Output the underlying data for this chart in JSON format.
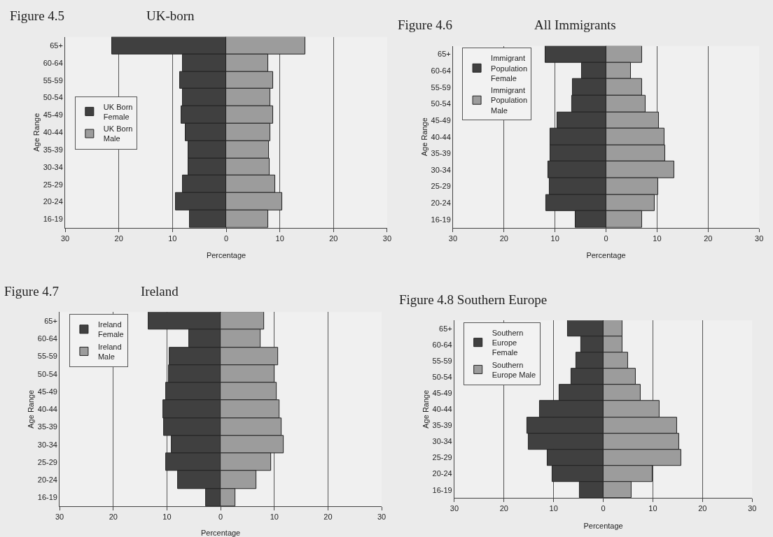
{
  "chart_data": [
    {
      "type": "bar",
      "stacked": true,
      "orientation": "horizontal",
      "title": "Figure 4.5",
      "subtitle": "UK-born",
      "xlabel": "Percentage",
      "ylabel": "Age Range",
      "categories": [
        "65+",
        "60-64",
        "55-59",
        "50-54",
        "45-49",
        "40-44",
        "35-39",
        "30-34",
        "25-29",
        "20-24",
        "16-19"
      ],
      "series": [
        {
          "name": "UK Born Female",
          "color": "#404040",
          "values": [
            -21.3,
            -8.1,
            -8.6,
            -8.1,
            -8.4,
            -7.5,
            -7.1,
            -7.1,
            -8.1,
            -9.4,
            -6.8
          ]
        },
        {
          "name": "UK Born Male",
          "color": "#9c9c9c",
          "values": [
            14.8,
            7.8,
            8.7,
            8.2,
            8.8,
            8.2,
            8.0,
            8.1,
            9.1,
            10.4,
            7.8
          ]
        }
      ],
      "xlim": [
        -30,
        30
      ],
      "xticks": [
        {
          "value": -30,
          "label": "30"
        },
        {
          "value": -20,
          "label": "20"
        },
        {
          "value": -10,
          "label": "10"
        },
        0,
        10,
        20,
        30
      ],
      "grid": "x",
      "legend": "left"
    },
    {
      "type": "bar",
      "stacked": true,
      "orientation": "horizontal",
      "title": "Figure 4.6",
      "subtitle": "All Immigrants",
      "xlabel": "Percentage",
      "ylabel": "Age Range",
      "categories": [
        "65+",
        "60-64",
        "55-59",
        "50-54",
        "45-49",
        "40-44",
        "35-39",
        "30-34",
        "25-29",
        "20-24",
        "16-19"
      ],
      "series": [
        {
          "name": "Immigrant Population Female",
          "color": "#404040",
          "values": [
            -11.9,
            -4.8,
            -6.6,
            -6.7,
            -9.6,
            -10.9,
            -10.9,
            -11.4,
            -11.1,
            -11.8,
            -6.0
          ]
        },
        {
          "name": "Immigrant Population Male",
          "color": "#9c9c9c",
          "values": [
            7.0,
            4.9,
            7.0,
            7.8,
            10.3,
            11.5,
            11.6,
            13.4,
            10.2,
            9.5,
            7.0
          ]
        }
      ],
      "xlim": [
        -30,
        30
      ],
      "xticks": [
        {
          "value": -30,
          "label": "30"
        },
        {
          "value": -20,
          "label": "20"
        },
        {
          "value": -10,
          "label": "10"
        },
        0,
        10,
        20,
        30
      ],
      "grid": "x",
      "legend": "top left"
    },
    {
      "type": "bar",
      "stacked": true,
      "orientation": "horizontal",
      "title": "Figure 4.7",
      "subtitle": "Ireland",
      "xlabel": "Percentage",
      "ylabel": "Age Range",
      "categories": [
        "65+",
        "60-64",
        "55-59",
        "50-54",
        "45-49",
        "40-44",
        "35-39",
        "30-34",
        "25-29",
        "20-24",
        "16-19"
      ],
      "series": [
        {
          "name": "Ireland Female",
          "color": "#404040",
          "values": [
            -13.4,
            -5.9,
            -9.5,
            -9.6,
            -10.2,
            -10.7,
            -10.6,
            -9.1,
            -10.2,
            -8.0,
            -2.8
          ]
        },
        {
          "name": "Ireland Male",
          "color": "#9c9c9c",
          "values": [
            8.1,
            7.4,
            10.7,
            10.0,
            10.5,
            10.9,
            11.4,
            11.8,
            9.4,
            6.6,
            2.8
          ]
        }
      ],
      "xlim": [
        -30,
        30
      ],
      "xticks": [
        {
          "value": -30,
          "label": "30"
        },
        {
          "value": -20,
          "label": "20"
        },
        {
          "value": -10,
          "label": "10"
        },
        0,
        10,
        20,
        30
      ],
      "grid": "x",
      "legend": "top left"
    },
    {
      "type": "bar",
      "stacked": true,
      "orientation": "horizontal",
      "title": "Figure 4.8 Southern Europe",
      "xlabel": "Percentage",
      "ylabel": "Age Range",
      "categories": [
        "65+",
        "60-64",
        "55-59",
        "50-54",
        "45-49",
        "40-44",
        "35-39",
        "30-34",
        "25-29",
        "20-24",
        "16-19"
      ],
      "series": [
        {
          "name": "Southern Europe Female",
          "color": "#404040",
          "values": [
            -7.1,
            -4.4,
            -5.5,
            -6.4,
            -8.9,
            -12.8,
            -15.3,
            -15.0,
            -11.2,
            -10.2,
            -4.8
          ]
        },
        {
          "name": "Southern Europe Male",
          "color": "#9c9c9c",
          "values": [
            3.9,
            3.9,
            5.0,
            6.5,
            7.5,
            11.4,
            14.8,
            15.3,
            15.7,
            9.9,
            5.7
          ]
        }
      ],
      "xlim": [
        -30,
        30
      ],
      "xticks": [
        {
          "value": -30,
          "label": "30"
        },
        {
          "value": -20,
          "label": "20"
        },
        {
          "value": -10,
          "label": "10"
        },
        0,
        10,
        20,
        30
      ],
      "grid": "x",
      "legend": "top left"
    }
  ]
}
